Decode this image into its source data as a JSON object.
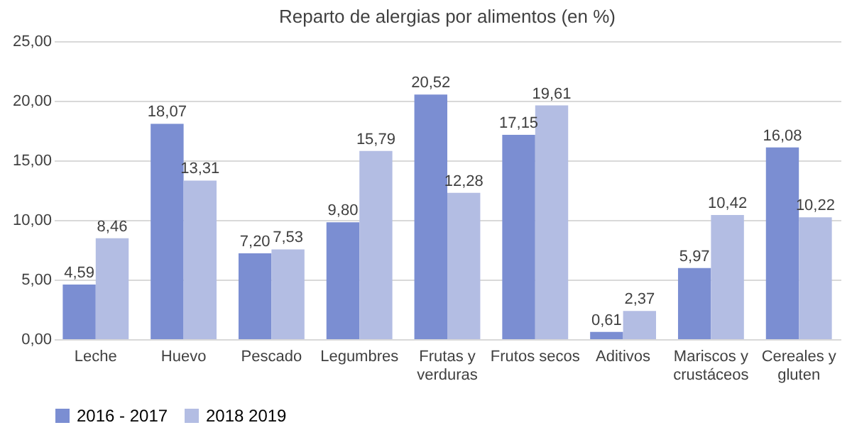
{
  "chart_data": {
    "type": "bar",
    "title": "Reparto de alergias por alimentos (en %)",
    "categories": [
      "Leche",
      "Huevo",
      "Pescado",
      "Legumbres",
      "Frutas y verduras",
      "Frutos secos",
      "Aditivos",
      "Mariscos y crustáceos",
      "Cereales y gluten"
    ],
    "series": [
      {
        "name": "2016 - 2017",
        "color": "#7b8ed2",
        "values": [
          4.59,
          18.07,
          7.2,
          9.8,
          20.52,
          17.15,
          0.61,
          5.97,
          16.08
        ],
        "value_labels": [
          "4,59",
          "18,07",
          "7,20",
          "9,80",
          "20,52",
          "17,15",
          "0,61",
          "5,97",
          "16,08"
        ]
      },
      {
        "name": "2018 2019",
        "color": "#b3bde3",
        "values": [
          8.46,
          13.31,
          7.53,
          15.79,
          12.28,
          19.61,
          2.37,
          10.42,
          10.22
        ],
        "value_labels": [
          "8,46",
          "13,31",
          "7,53",
          "15,79",
          "12,28",
          "19,61",
          "2,37",
          "10,42",
          "10,22"
        ]
      }
    ],
    "ylim": [
      0,
      25
    ],
    "yticks": [
      {
        "value": 0,
        "label": "0,00"
      },
      {
        "value": 5,
        "label": "5,00"
      },
      {
        "value": 10,
        "label": "10,00"
      },
      {
        "value": 15,
        "label": "15,00"
      },
      {
        "value": 20,
        "label": "20,00"
      },
      {
        "value": 25,
        "label": "25,00"
      }
    ],
    "grid": "y",
    "legend": "bottom"
  }
}
